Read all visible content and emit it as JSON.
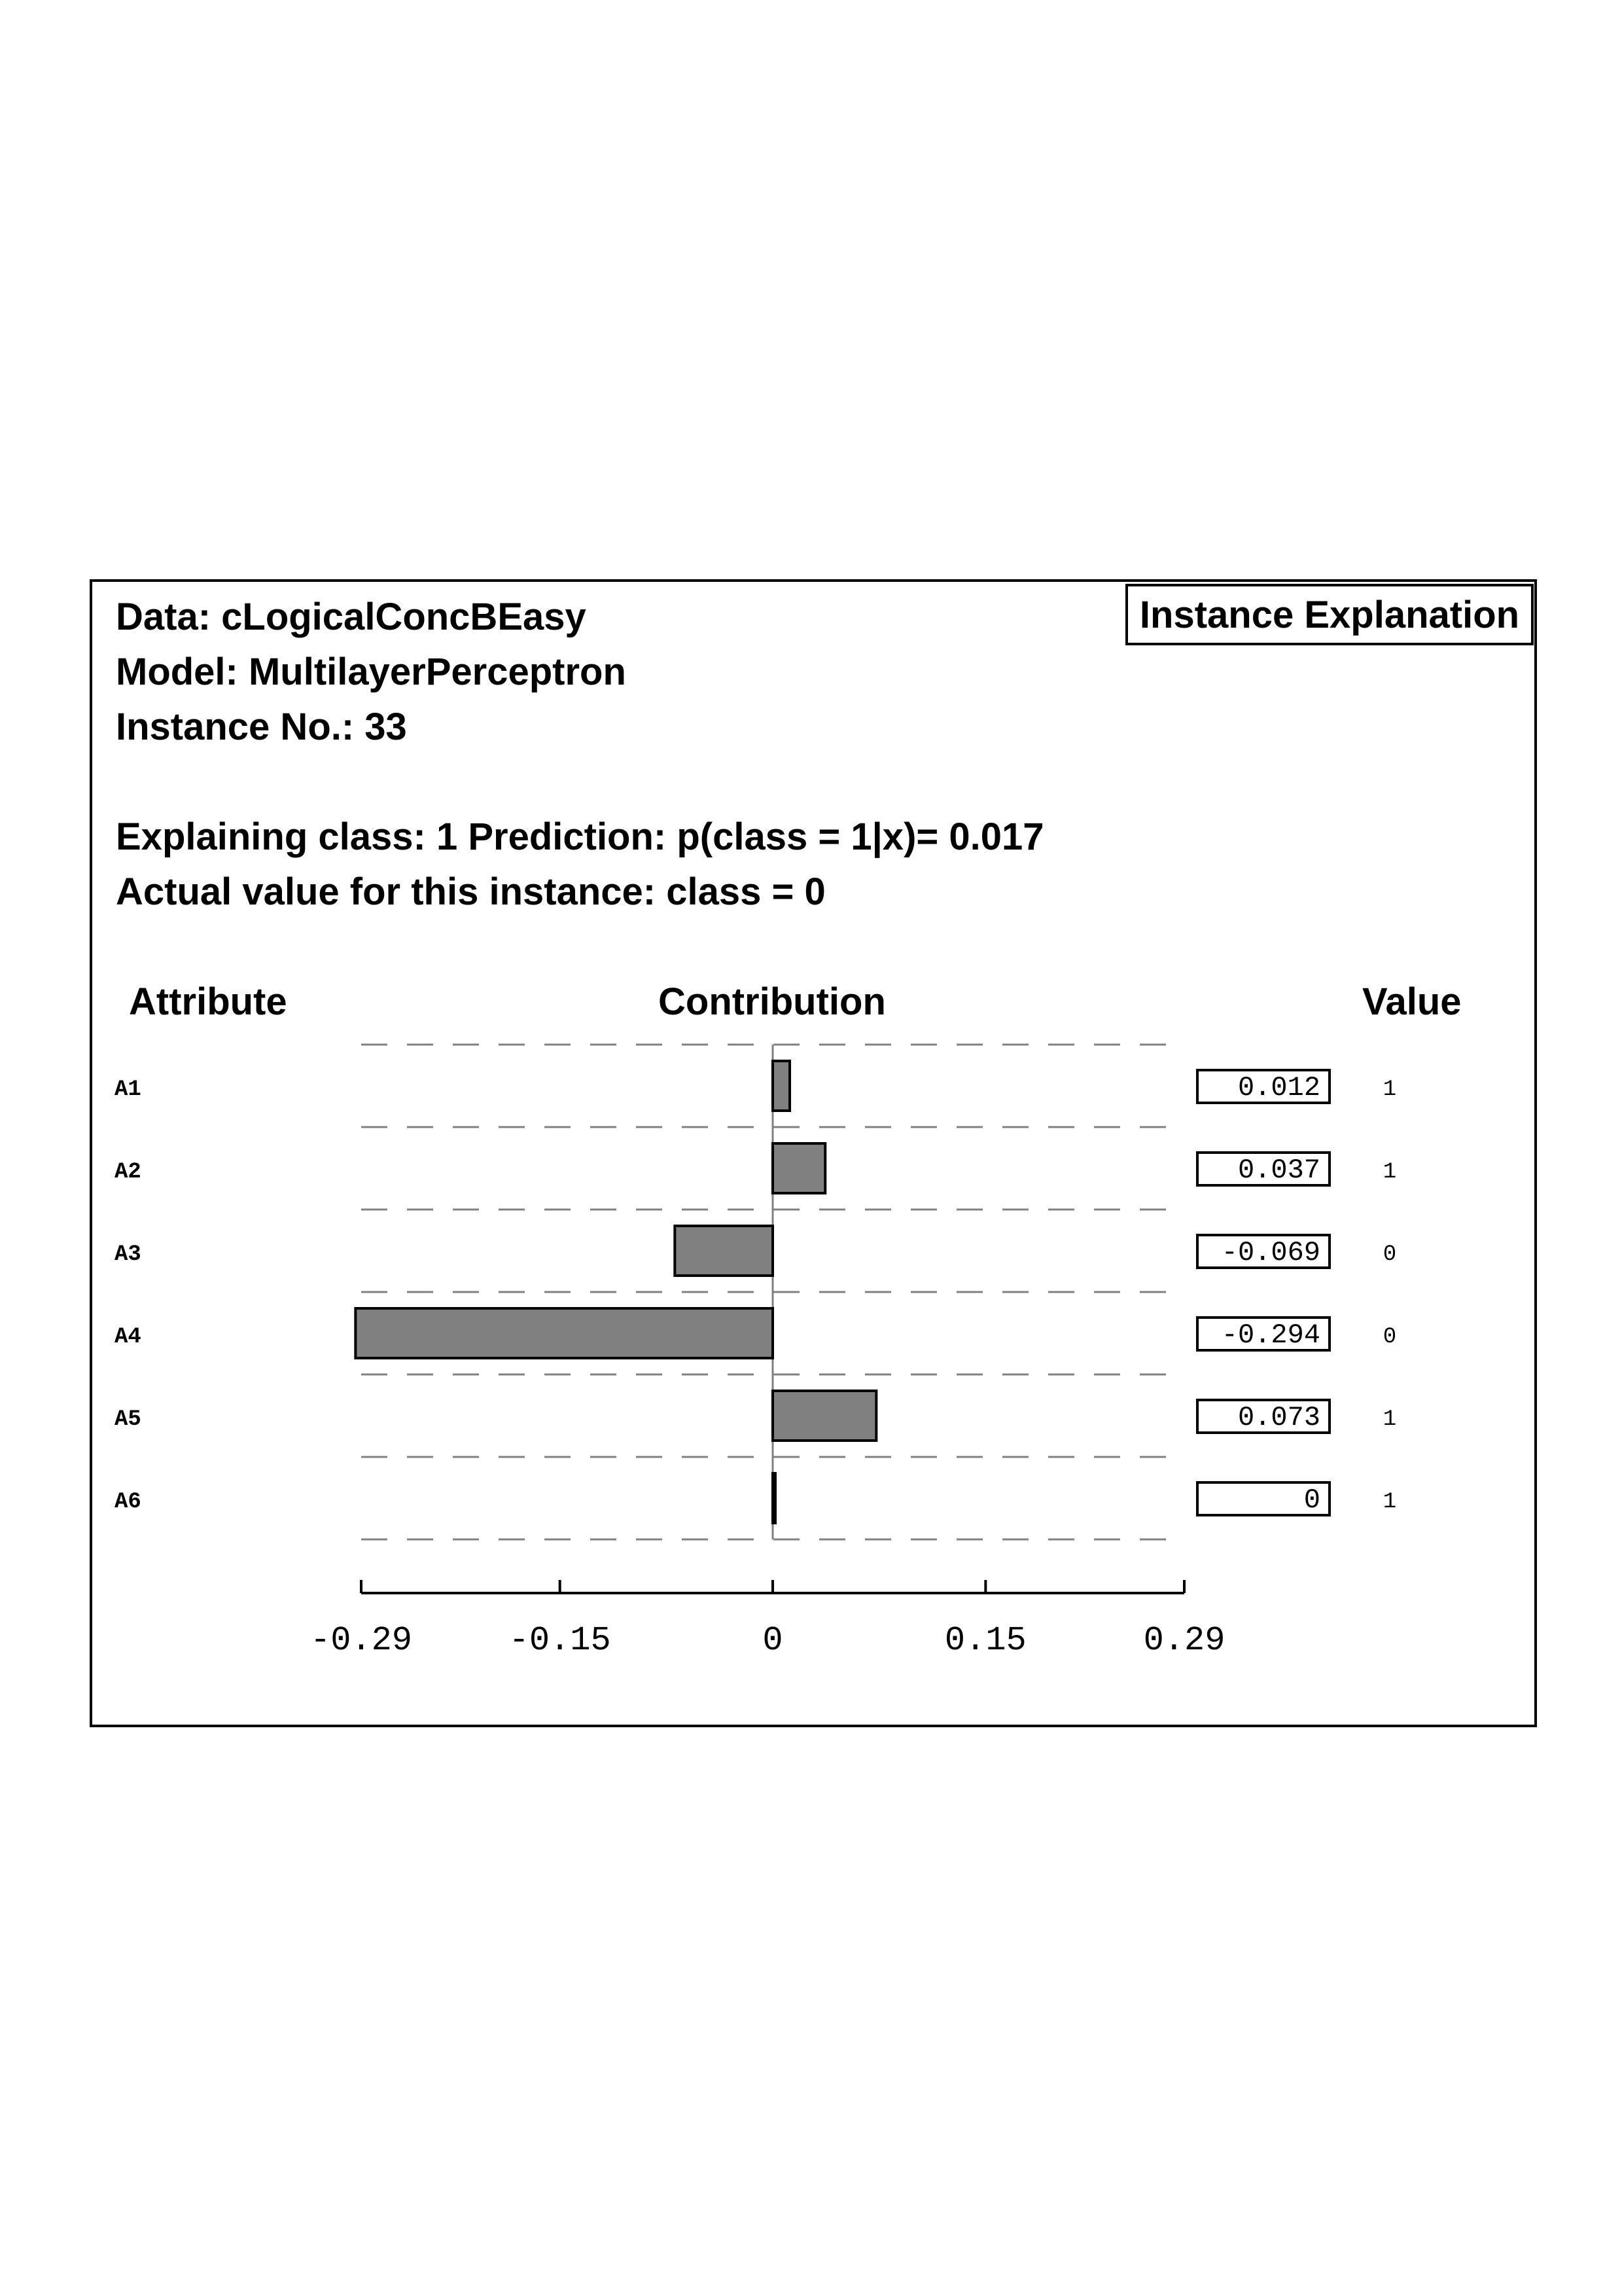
{
  "header": {
    "data_line": "Data: cLogicalConcBEasy",
    "model_line": "Model: MultilayerPerceptron",
    "instance_line": "Instance No.: 33",
    "explaining_line": "Explaining class: 1 Prediction: p(class = 1|x)= 0.017",
    "actual_line": "Actual value for this instance: class = 0",
    "badge": "Instance Explanation"
  },
  "columns": {
    "attribute": "Attribute",
    "contribution": "Contribution",
    "value": "Value"
  },
  "chart_data": {
    "type": "bar",
    "orientation": "horizontal",
    "categories": [
      "A1",
      "A2",
      "A3",
      "A4",
      "A5",
      "A6"
    ],
    "values": [
      0.012,
      0.037,
      -0.069,
      -0.294,
      0.073,
      0
    ],
    "value_labels": [
      "0.012",
      "0.037",
      "-0.069",
      "-0.294",
      "0.073",
      "0"
    ],
    "attribute_values": [
      "1",
      "1",
      "0",
      "0",
      "1",
      "1"
    ],
    "xlim": [
      -0.29,
      0.29
    ],
    "xticks": [
      -0.29,
      -0.15,
      0,
      0.15,
      0.29
    ],
    "xtick_labels": [
      "-0.29",
      "-0.15",
      "0",
      "0.15",
      "0.29"
    ],
    "grid": "dashed horizontal separators",
    "bar_color": "#808080"
  }
}
